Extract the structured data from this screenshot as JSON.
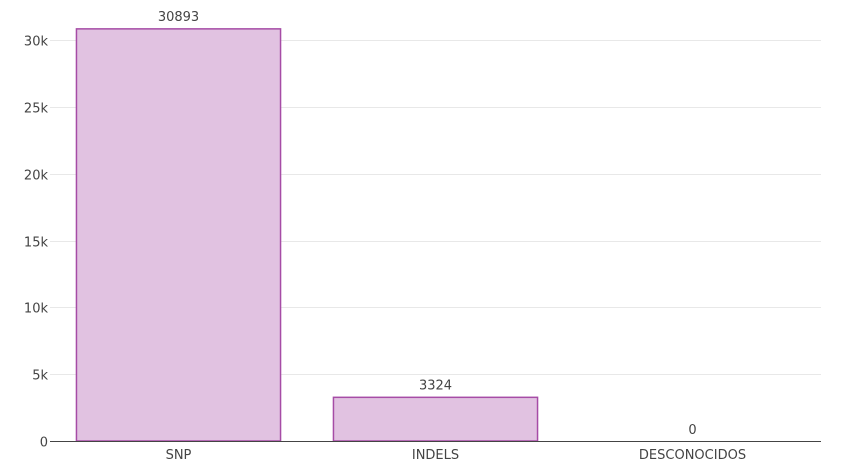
{
  "chart_data": {
    "type": "bar",
    "categories": [
      "SNP",
      "INDELS",
      "DESCONOCIDOS"
    ],
    "values": [
      30893,
      3324,
      0
    ],
    "data_labels": [
      "30893",
      "3324",
      "0"
    ],
    "title": "",
    "xlabel": "",
    "ylabel": "",
    "ylim": [
      0,
      31500
    ],
    "yticks": [
      0,
      5000,
      10000,
      15000,
      20000,
      25000,
      30000
    ],
    "ytick_labels": [
      "0",
      "5k",
      "10k",
      "15k",
      "20k",
      "25k",
      "30k"
    ],
    "grid": "horizontal",
    "legend": "none",
    "colors": {
      "bar_fill": "#e1c2e1",
      "bar_stroke": "#a64ca6",
      "grid": "#e8e8e8",
      "axis": "#444444",
      "text": "#444444"
    }
  }
}
